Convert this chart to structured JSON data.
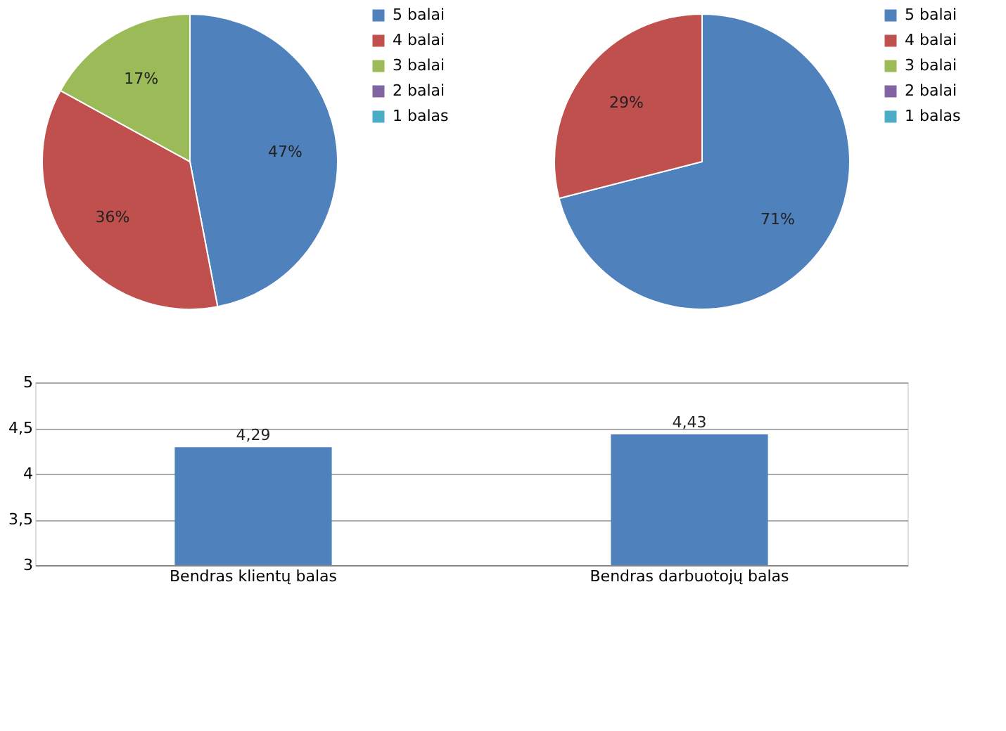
{
  "chart_data": [
    {
      "type": "pie",
      "categories": [
        "5 balai",
        "4 balai",
        "3 balai",
        "2 balai",
        "1 balas"
      ],
      "values": [
        47,
        36,
        17,
        0,
        0
      ],
      "colors": [
        "#4f81bd",
        "#c0504d",
        "#9bbb59",
        "#8064a2",
        "#4bacc6"
      ],
      "value_labels": [
        "47%",
        "36%",
        "17%",
        null,
        null
      ],
      "legend": "right"
    },
    {
      "type": "pie",
      "categories": [
        "5 balai",
        "4 balai",
        "3 balai",
        "2 balai",
        "1 balas"
      ],
      "values": [
        71,
        29,
        0,
        0,
        0
      ],
      "colors": [
        "#4f81bd",
        "#c0504d",
        "#9bbb59",
        "#8064a2",
        "#4bacc6"
      ],
      "value_labels": [
        "71%",
        "29%",
        null,
        null,
        null
      ],
      "legend": "right"
    },
    {
      "type": "bar",
      "categories": [
        "Bendras klientų balas",
        "Bendras darbuotojų balas"
      ],
      "values": [
        4.29,
        4.43
      ],
      "color": "#4f81bd",
      "value_labels": [
        "4,29",
        "4,43"
      ],
      "ylim": [
        3,
        5
      ],
      "yticks": [
        3,
        {
          "value": 3.5,
          "label": "3,5"
        },
        4,
        {
          "value": 4.5,
          "label": "4,5"
        },
        5
      ],
      "grid": "y"
    }
  ]
}
